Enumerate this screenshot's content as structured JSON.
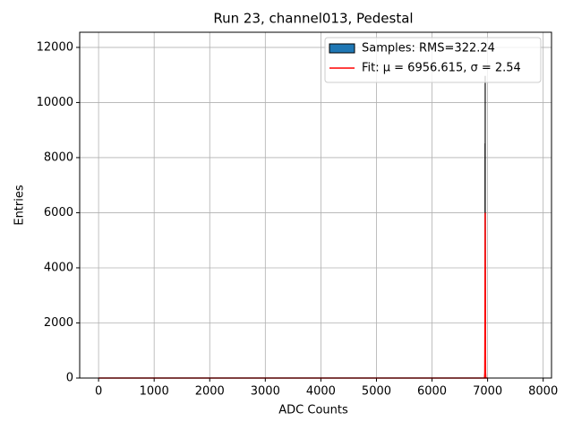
{
  "chart_data": {
    "type": "histogram",
    "title": "Run 23, channel013, Pedestal",
    "xlabel": "ADC Counts",
    "ylabel": "Entries",
    "xlim": [
      -340,
      8150
    ],
    "ylim": [
      0,
      12550
    ],
    "xticks": [
      0,
      1000,
      2000,
      3000,
      4000,
      5000,
      6000,
      7000,
      8000
    ],
    "yticks": [
      0,
      2000,
      4000,
      6000,
      8000,
      10000,
      12000
    ],
    "grid": true,
    "legend": "upper right",
    "histogram": {
      "name": "Samples: RMS=322.24",
      "color": "#1f77b4",
      "edgecolor": "#000000",
      "bins": [
        0,
        6950,
        6952,
        6954,
        6956,
        6958,
        6960,
        6962,
        6964,
        7000
      ],
      "counts": [
        0,
        200,
        2500,
        8500,
        10950,
        6000,
        1500,
        150,
        0
      ]
    },
    "fit": {
      "name": "Fit: μ = 6956.615, σ = 2.54",
      "color": "#ff0000",
      "x": [
        0,
        6945,
        6950,
        6953,
        6956.6,
        6960,
        6963,
        6968,
        7000
      ],
      "values": [
        0,
        0,
        204,
        2200,
        6000,
        2200,
        204,
        0,
        0
      ]
    }
  }
}
